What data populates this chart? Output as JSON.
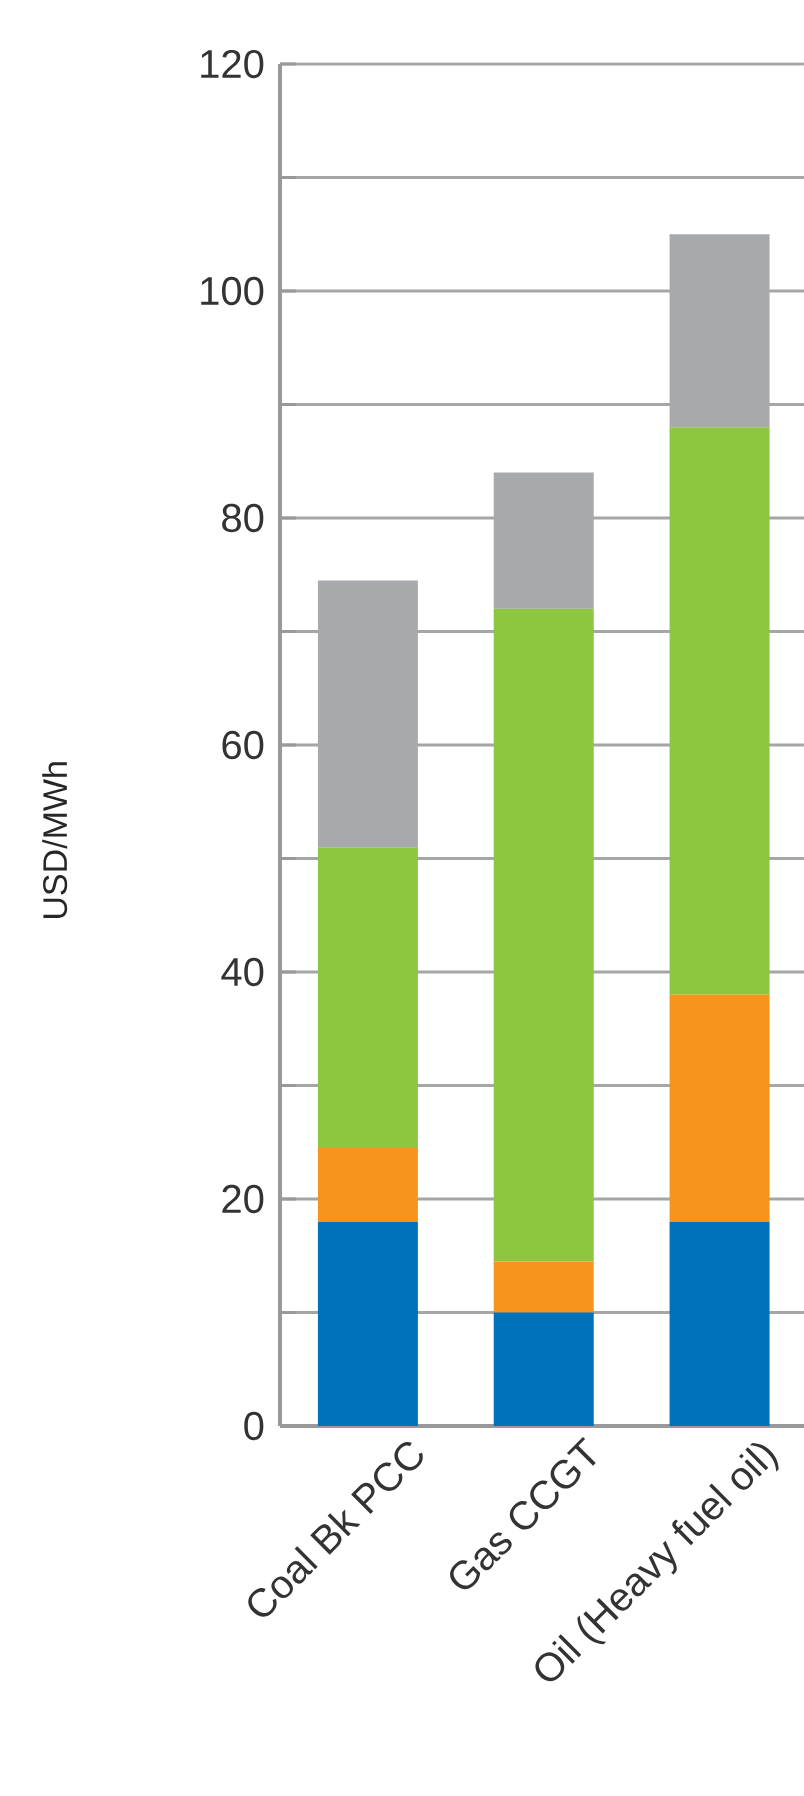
{
  "chart_data": {
    "type": "bar",
    "stacked": true,
    "ylabel": "USD/MWh",
    "categories": [
      "Coal Bk PCC",
      "Gas CCGT",
      "Oil (Heavy fuel oil)"
    ],
    "series": [
      {
        "color": "#0072bc",
        "values": [
          18,
          10,
          18
        ]
      },
      {
        "color": "#f7941d",
        "values": [
          6.5,
          4.5,
          20
        ]
      },
      {
        "color": "#8dc63f",
        "values": [
          26.5,
          57.5,
          50
        ]
      },
      {
        "color": "#a7a9ac",
        "values": [
          23.5,
          12,
          17
        ]
      }
    ],
    "ylim": [
      0,
      120
    ],
    "yticks": [
      0,
      {
        "value": 10,
        "label": null
      },
      20,
      {
        "value": 30,
        "label": null
      },
      40,
      {
        "value": 50,
        "label": null
      },
      60,
      {
        "value": 70,
        "label": null
      },
      80,
      {
        "value": 90,
        "label": null
      },
      100,
      {
        "value": 110,
        "label": null
      },
      120
    ],
    "grid": "y"
  }
}
